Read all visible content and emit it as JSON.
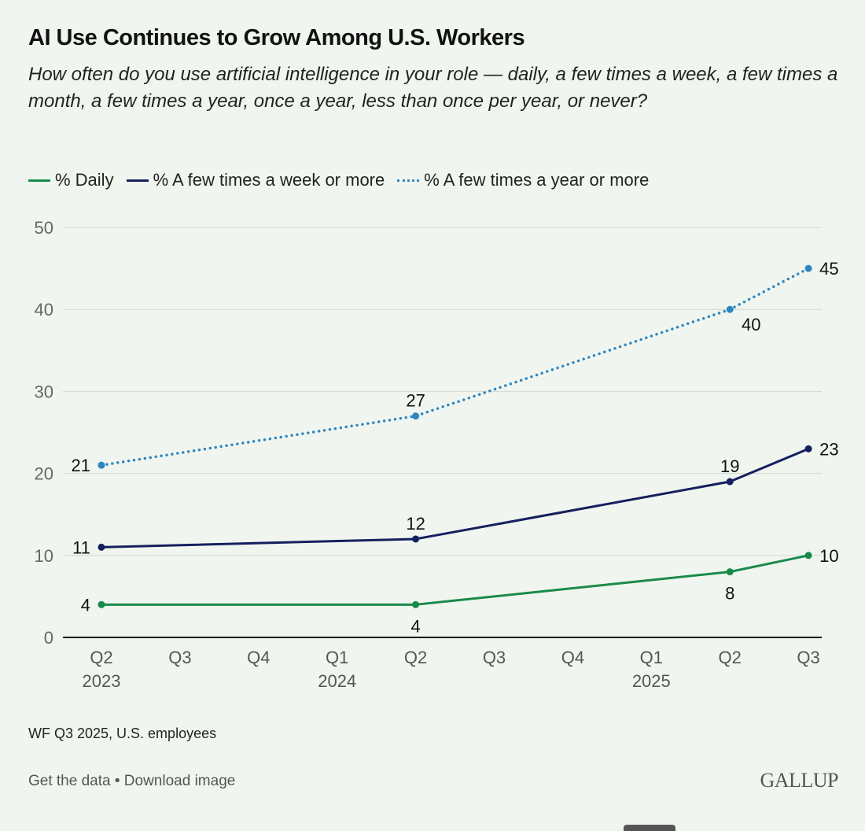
{
  "header": {
    "title": "AI Use Continues to Grow Among U.S. Workers",
    "subtitle": "How often do you use artificial intelligence in your role — daily, a few times a week, a few times a month, a few times a year, once a year, less than once per year, or never?"
  },
  "footer": {
    "note": "WF Q3 2025, U.S. employees",
    "get_data": "Get the data",
    "separator": " • ",
    "download": "Download image",
    "logo": "GALLUP"
  },
  "chart_data": {
    "type": "line",
    "title": "AI Use Continues to Grow Among U.S. Workers",
    "xlabel": "",
    "ylabel": "",
    "ylim": [
      0,
      50
    ],
    "yticks": [
      0,
      10,
      20,
      30,
      40,
      50
    ],
    "grid": true,
    "legend_position": "top-left",
    "x": [
      "Q2 2023",
      "Q3 2023",
      "Q4 2023",
      "Q1 2024",
      "Q2 2024",
      "Q3 2024",
      "Q4 2024",
      "Q1 2025",
      "Q2 2025",
      "Q3 2025"
    ],
    "x_tick_labels": [
      {
        "quarter": "Q2",
        "year": "2023"
      },
      {
        "quarter": "Q3",
        "year": ""
      },
      {
        "quarter": "Q4",
        "year": ""
      },
      {
        "quarter": "Q1",
        "year": "2024"
      },
      {
        "quarter": "Q2",
        "year": ""
      },
      {
        "quarter": "Q3",
        "year": ""
      },
      {
        "quarter": "Q4",
        "year": ""
      },
      {
        "quarter": "Q1",
        "year": "2025"
      },
      {
        "quarter": "Q2",
        "year": ""
      },
      {
        "quarter": "Q3",
        "year": ""
      }
    ],
    "series": [
      {
        "name": "% Daily",
        "color": "#1a8a4a",
        "style": "solid",
        "points": [
          {
            "x": "Q2 2023",
            "y": 4
          },
          {
            "x": "Q2 2024",
            "y": 4
          },
          {
            "x": "Q2 2025",
            "y": 8
          },
          {
            "x": "Q3 2025",
            "y": 10
          }
        ],
        "label_pos": [
          "left",
          "below",
          "below",
          "right"
        ]
      },
      {
        "name": "% A few times a week or more",
        "color": "#14205e",
        "style": "solid",
        "points": [
          {
            "x": "Q2 2023",
            "y": 11
          },
          {
            "x": "Q2 2024",
            "y": 12
          },
          {
            "x": "Q2 2025",
            "y": 19
          },
          {
            "x": "Q3 2025",
            "y": 23
          }
        ],
        "label_pos": [
          "left",
          "above",
          "above",
          "right"
        ]
      },
      {
        "name": "% A few times a year or more",
        "color": "#2e86c1",
        "style": "dotted",
        "points": [
          {
            "x": "Q2 2023",
            "y": 21
          },
          {
            "x": "Q2 2024",
            "y": 27
          },
          {
            "x": "Q2 2025",
            "y": 40
          },
          {
            "x": "Q3 2025",
            "y": 45
          }
        ],
        "label_pos": [
          "left",
          "above",
          "below-right",
          "right"
        ]
      }
    ]
  }
}
